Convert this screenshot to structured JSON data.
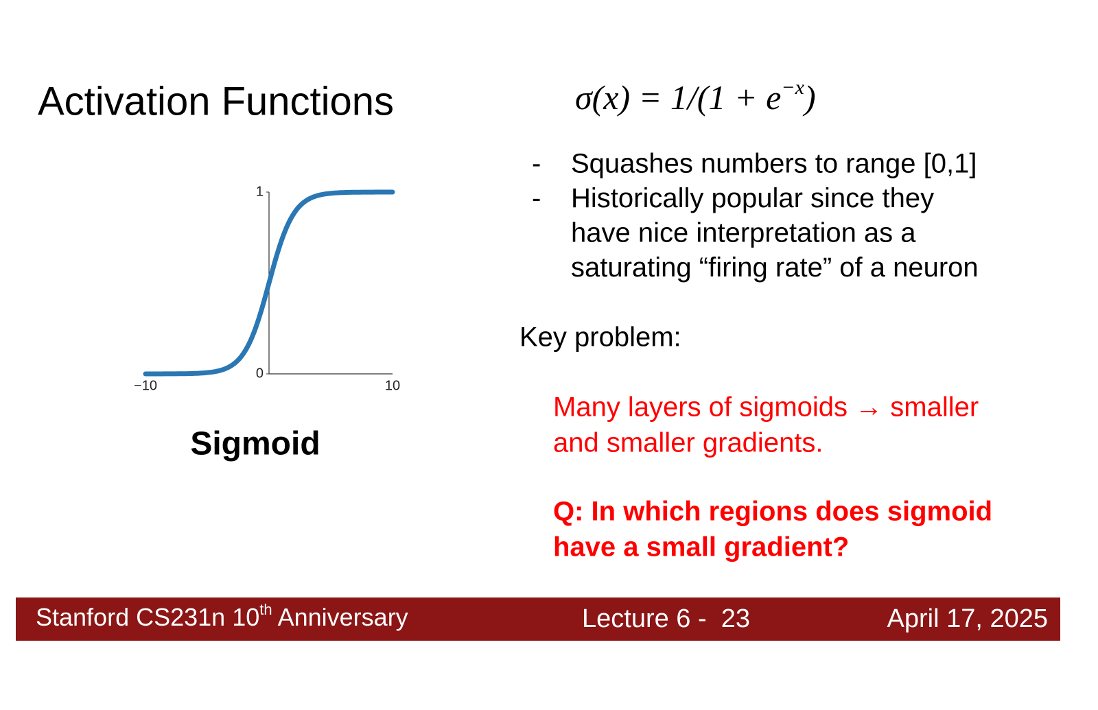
{
  "title": "Activation Functions",
  "formula": {
    "main": "σ(x) = 1/(1 + e",
    "exponent": "−x",
    "close": ")"
  },
  "bullets": [
    {
      "marker": "-",
      "lines": [
        "Squashes numbers to range [0,1]"
      ]
    },
    {
      "marker": "-",
      "lines": [
        "Historically popular since they",
        "have nice interpretation as a",
        "saturating “firing rate” of a neuron"
      ]
    }
  ],
  "key_problem": "Key problem:",
  "problem": [
    "Many layers of sigmoids → smaller",
    "and smaller gradients."
  ],
  "question": [
    "Q: In which regions does sigmoid",
    "have a small gradient?"
  ],
  "figure": {
    "caption": "Sigmoid",
    "xlim": [
      -10,
      10
    ],
    "ylim": [
      0,
      1
    ],
    "xticks": [
      {
        "value": -10,
        "label": "−10"
      },
      10
    ],
    "yticks": [
      0,
      1
    ],
    "color": "#2a77b4"
  },
  "footer": {
    "course": "Stanford CS231n 10",
    "course_sup": "th",
    "course_end": " Anniversary",
    "lecture": "Lecture 6 -  23",
    "date": "April 17, 2025"
  }
}
